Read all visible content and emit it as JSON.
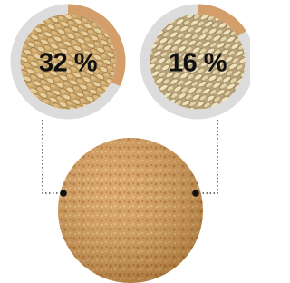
{
  "chart_data": [
    {
      "type": "donut",
      "values": [
        32
      ],
      "value_labels": [
        "32 %"
      ],
      "color": "#d39e69",
      "track_color": "#dcdcdc"
    },
    {
      "type": "donut",
      "values": [
        16
      ],
      "value_labels": [
        "16 %"
      ],
      "color": "#d39e69",
      "track_color": "#dcdcdc"
    }
  ]
}
